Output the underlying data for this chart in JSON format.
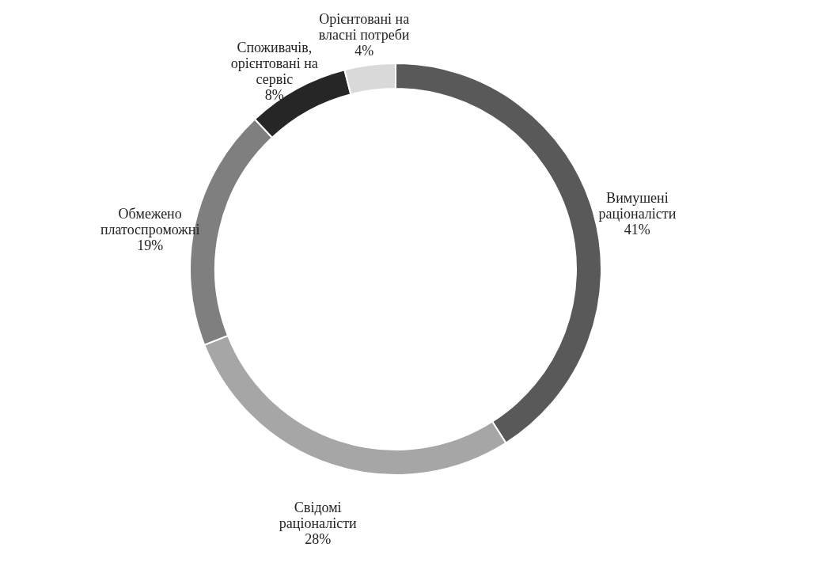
{
  "chart_data": {
    "type": "donut",
    "categories": [
      "Вимушені раціоналісти",
      "Свідомі раціоналісти",
      "Обмежено платоспроможні",
      "Споживачів, орієнтовані на сервіс",
      "Орієнтовані на власні потреби"
    ],
    "values": [
      41,
      28,
      19,
      8,
      4
    ],
    "colors": [
      "#595959",
      "#a6a6a6",
      "#7f7f7f",
      "#262626",
      "#d9d9d9"
    ],
    "value_labels": [
      "41%",
      "28%",
      "19%",
      "8%",
      "4%"
    ],
    "legend": false
  }
}
